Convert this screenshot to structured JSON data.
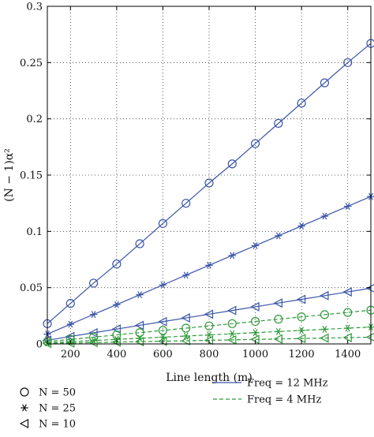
{
  "chart_data": {
    "type": "line",
    "xlabel": "Line length (m)",
    "ylabel": "(N − 1)α²",
    "xlim": [
      100,
      1500
    ],
    "ylim": [
      0,
      0.3
    ],
    "x_ticks": [
      "200",
      "400",
      "600",
      "800",
      "1000",
      "1200",
      "1400"
    ],
    "y_ticks": [
      "0",
      "0.05",
      "0.1",
      "0.15",
      "0.2",
      "0.25",
      "0.3"
    ],
    "grid": "dotted",
    "x": [
      100,
      200,
      300,
      400,
      500,
      600,
      700,
      800,
      900,
      1000,
      1100,
      1200,
      1300,
      1400,
      1500
    ],
    "series": [
      {
        "freq": "12",
        "N": "50",
        "marker": "circle",
        "color": "#3a55a8",
        "dash": "solid",
        "values": [
          0.018,
          0.036,
          0.054,
          0.071,
          0.089,
          0.107,
          0.125,
          0.143,
          0.16,
          0.178,
          0.196,
          0.214,
          0.232,
          0.25,
          0.267
        ]
      },
      {
        "freq": "12",
        "N": "25",
        "marker": "asterisk",
        "color": "#3a55a8",
        "dash": "solid",
        "values": [
          0.0087,
          0.0175,
          0.0262,
          0.0349,
          0.0437,
          0.0524,
          0.0611,
          0.0699,
          0.0786,
          0.0873,
          0.0961,
          0.1048,
          0.1135,
          0.1223,
          0.131
        ]
      },
      {
        "freq": "12",
        "N": "10",
        "marker": "triangle",
        "color": "#3a55a8",
        "dash": "solid",
        "values": [
          0.0033,
          0.0066,
          0.0099,
          0.0132,
          0.0165,
          0.0198,
          0.0231,
          0.0264,
          0.0297,
          0.033,
          0.0363,
          0.0396,
          0.0429,
          0.0462,
          0.0495
        ]
      },
      {
        "freq": "4",
        "N": "50",
        "marker": "circle",
        "color": "#2e9a3a",
        "dash": "dashed",
        "values": [
          0.002,
          0.004,
          0.006,
          0.008,
          0.01,
          0.012,
          0.014,
          0.016,
          0.018,
          0.02,
          0.022,
          0.024,
          0.026,
          0.028,
          0.03
        ]
      },
      {
        "freq": "4",
        "N": "25",
        "marker": "asterisk",
        "color": "#2e9a3a",
        "dash": "dashed",
        "values": [
          0.001,
          0.002,
          0.003,
          0.004,
          0.005,
          0.006,
          0.007,
          0.008,
          0.009,
          0.01,
          0.011,
          0.012,
          0.013,
          0.014,
          0.015
        ]
      },
      {
        "freq": "4",
        "N": "10",
        "marker": "triangle",
        "color": "#2e9a3a",
        "dash": "dashed",
        "values": [
          0.0004,
          0.0008,
          0.0012,
          0.0016,
          0.002,
          0.0024,
          0.0028,
          0.0032,
          0.0036,
          0.004,
          0.0044,
          0.0048,
          0.0052,
          0.0056,
          0.006
        ]
      }
    ],
    "legend": {
      "markers": [
        {
          "marker": "circle",
          "label": "N = 50"
        },
        {
          "marker": "asterisk",
          "label": "N = 25"
        },
        {
          "marker": "triangle",
          "label": "N = 10"
        }
      ],
      "lines": [
        {
          "color": "#3a55a8",
          "dash": "solid",
          "label": "Freq = 12 MHz"
        },
        {
          "color": "#2e9a3a",
          "dash": "dashed",
          "label": "Freq = 4 MHz"
        }
      ]
    }
  }
}
